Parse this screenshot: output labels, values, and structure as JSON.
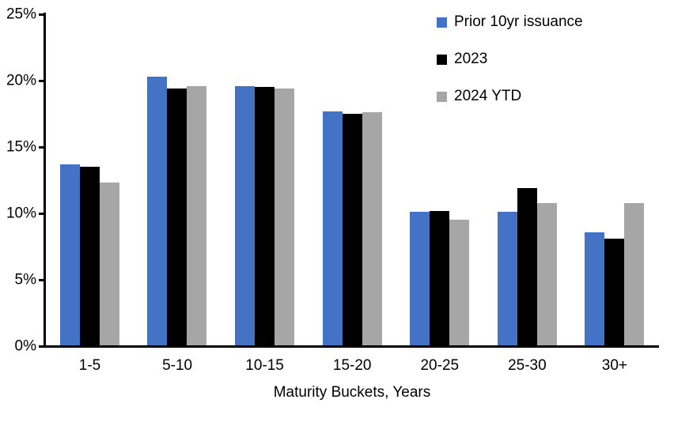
{
  "chart_data": {
    "type": "bar",
    "title": "",
    "xlabel": "Maturity Buckets, Years",
    "ylabel": "",
    "categories": [
      "1-5",
      "5-10",
      "10-15",
      "15-20",
      "20-25",
      "25-30",
      "30+"
    ],
    "series": [
      {
        "name": "Prior 10yr issuance",
        "color": "#4472C4",
        "values": [
          13.7,
          20.3,
          19.6,
          17.7,
          10.1,
          10.1,
          8.6
        ]
      },
      {
        "name": "2023",
        "color": "#000000",
        "values": [
          13.5,
          19.4,
          19.5,
          17.5,
          10.2,
          11.9,
          8.1
        ]
      },
      {
        "name": "2024 YTD",
        "color": "#A6A6A6",
        "values": [
          12.3,
          19.6,
          19.4,
          17.6,
          9.5,
          10.8,
          10.8
        ]
      }
    ],
    "ylim": [
      0,
      25
    ],
    "yticks": [
      0,
      5,
      10,
      15,
      20,
      25
    ],
    "ytick_suffix": "%",
    "grid": false,
    "legend_position": "top-right",
    "axis_color": "#000000"
  }
}
